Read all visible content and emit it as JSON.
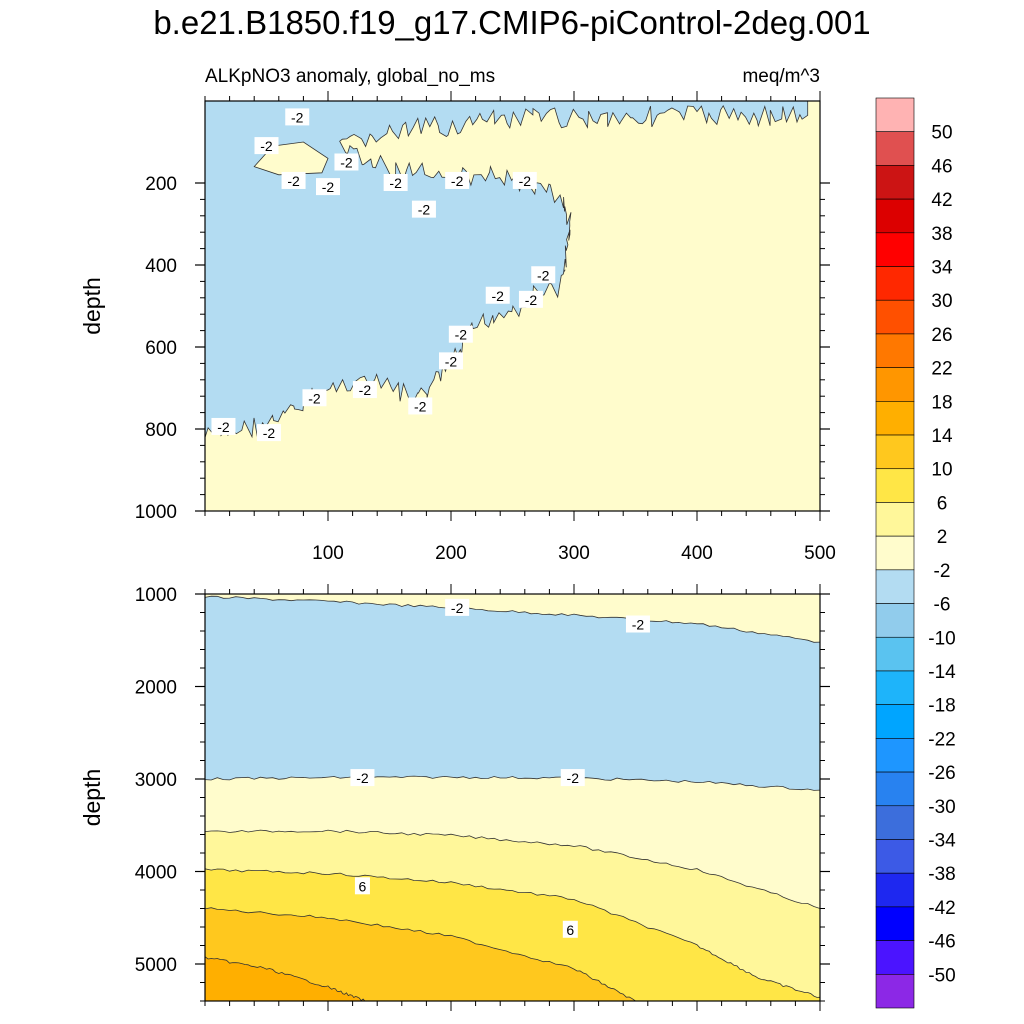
{
  "figure": {
    "title": "b.e21.B1850.f19_g17.CMIP6-piControl-2deg.001",
    "left_subtitle": "ALKpNO3 anomaly, global_no_ms",
    "right_subtitle": "meq/m^3"
  },
  "chart_data": [
    {
      "type": "contour",
      "panel": "upper",
      "xlabel": "",
      "ylabel": "depth",
      "xlim": [
        0,
        500
      ],
      "ylim": [
        1000,
        0
      ],
      "xticks": [
        100,
        200,
        300,
        400,
        500
      ],
      "yticks": [
        200,
        400,
        600,
        800,
        1000
      ],
      "regions": [
        {
          "level_range": "-6 to -2",
          "color": "#b3dcf2",
          "description": "negative anomaly tongue in upper ocean, deepest near x=0 (~800 m), extending to x~300"
        },
        {
          "level_range": "-2 to 2",
          "color": "#fffccc",
          "description": "near-zero anomaly elsewhere"
        }
      ],
      "boundary": [
        [
          0,
          820
        ],
        [
          30,
          800
        ],
        [
          60,
          780
        ],
        [
          90,
          720
        ],
        [
          120,
          680
        ],
        [
          150,
          700
        ],
        [
          175,
          730
        ],
        [
          195,
          660
        ],
        [
          210,
          600
        ],
        [
          220,
          550
        ],
        [
          235,
          520
        ],
        [
          255,
          500
        ],
        [
          270,
          470
        ],
        [
          290,
          450
        ],
        [
          298,
          300
        ],
        [
          290,
          240
        ],
        [
          265,
          200
        ],
        [
          230,
          180
        ],
        [
          200,
          190
        ],
        [
          160,
          170
        ],
        [
          130,
          150
        ],
        [
          110,
          120
        ],
        [
          130,
          90
        ],
        [
          170,
          70
        ],
        [
          230,
          50
        ],
        [
          300,
          40
        ],
        [
          400,
          35
        ],
        [
          490,
          35
        ],
        [
          490,
          0
        ],
        [
          0,
          0
        ]
      ],
      "inner_patch": [
        [
          40,
          160
        ],
        [
          55,
          110
        ],
        [
          80,
          100
        ],
        [
          100,
          140
        ],
        [
          95,
          175
        ],
        [
          60,
          180
        ]
      ],
      "contour_labels": [
        {
          "text": "-2",
          "x": 50,
          "y": 110
        },
        {
          "text": "-2",
          "x": 75,
          "y": 40
        },
        {
          "text": "-2",
          "x": 115,
          "y": 150
        },
        {
          "text": "-2",
          "x": 72,
          "y": 195
        },
        {
          "text": "-2",
          "x": 100,
          "y": 210
        },
        {
          "text": "-2",
          "x": 155,
          "y": 200
        },
        {
          "text": "-2",
          "x": 205,
          "y": 195
        },
        {
          "text": "-2",
          "x": 260,
          "y": 195
        },
        {
          "text": "-2",
          "x": 178,
          "y": 265
        },
        {
          "text": "-2",
          "x": 275,
          "y": 425
        },
        {
          "text": "-2",
          "x": 238,
          "y": 475
        },
        {
          "text": "-2",
          "x": 265,
          "y": 485
        },
        {
          "text": "-2",
          "x": 208,
          "y": 570
        },
        {
          "text": "-2",
          "x": 200,
          "y": 635
        },
        {
          "text": "-2",
          "x": 130,
          "y": 705
        },
        {
          "text": "-2",
          "x": 89,
          "y": 725
        },
        {
          "text": "-2",
          "x": 175,
          "y": 745
        },
        {
          "text": "-2",
          "x": 15,
          "y": 795
        },
        {
          "text": "-2",
          "x": 52,
          "y": 810
        }
      ]
    },
    {
      "type": "contour",
      "panel": "lower",
      "xlabel": "",
      "ylabel": "depth",
      "xlim": [
        0,
        500
      ],
      "ylim": [
        5400,
        1000
      ],
      "yticks": [
        1000,
        2000,
        3000,
        4000,
        5000
      ],
      "contours": [
        {
          "level": -2,
          "points": [
            [
              0,
              1030
            ],
            [
              100,
              1080
            ],
            [
              200,
              1150
            ],
            [
              300,
              1230
            ],
            [
              400,
              1320
            ],
            [
              500,
              1520
            ]
          ]
        },
        {
          "level": -2,
          "points": [
            [
              0,
              3000
            ],
            [
              100,
              2985
            ],
            [
              200,
              2980
            ],
            [
              300,
              2990
            ],
            [
              400,
              3030
            ],
            [
              500,
              3120
            ]
          ]
        },
        {
          "level": 2,
          "points": [
            [
              0,
              3570
            ],
            [
              100,
              3560
            ],
            [
              200,
              3610
            ],
            [
              300,
              3720
            ],
            [
              400,
              3980
            ],
            [
              500,
              4400
            ]
          ]
        },
        {
          "level": 6,
          "points": [
            [
              0,
              3980
            ],
            [
              100,
              4020
            ],
            [
              200,
              4120
            ],
            [
              300,
              4300
            ],
            [
              400,
              4800
            ],
            [
              450,
              5150
            ],
            [
              500,
              5360
            ]
          ]
        },
        {
          "level": 10,
          "points": [
            [
              0,
              4400
            ],
            [
              100,
              4500
            ],
            [
              200,
              4700
            ],
            [
              300,
              5050
            ],
            [
              350,
              5400
            ]
          ]
        },
        {
          "level": 14,
          "points": [
            [
              0,
              4930
            ],
            [
              50,
              5050
            ],
            [
              100,
              5250
            ],
            [
              130,
              5400
            ]
          ]
        }
      ],
      "fill_colors": [
        "#b3dcf2",
        "#fffccc",
        "#fff79a",
        "#ffe646",
        "#ffc81e",
        "#ffaf00"
      ],
      "contour_labels": [
        {
          "text": "-2",
          "x": 205,
          "y": 1150
        },
        {
          "text": "-2",
          "x": 352,
          "y": 1330
        },
        {
          "text": "-2",
          "x": 128,
          "y": 2990
        },
        {
          "text": "-2",
          "x": 299,
          "y": 2990
        },
        {
          "text": "6",
          "x": 128,
          "y": 4160
        },
        {
          "text": "6",
          "x": 297,
          "y": 4630
        }
      ]
    }
  ],
  "colorbar": {
    "labels": [
      "50",
      "46",
      "42",
      "38",
      "34",
      "30",
      "26",
      "22",
      "18",
      "14",
      "10",
      "6",
      "2",
      "-2",
      "-6",
      "-10",
      "-14",
      "-18",
      "-22",
      "-26",
      "-30",
      "-34",
      "-38",
      "-42",
      "-46",
      "-50"
    ],
    "colors": [
      "#ffb3b3",
      "#e05050",
      "#cc1414",
      "#dc0000",
      "#ff0000",
      "#ff2800",
      "#ff5000",
      "#ff7800",
      "#ff9600",
      "#ffaf00",
      "#ffc81e",
      "#ffe646",
      "#fff79a",
      "#fffccc",
      "#b3dcf2",
      "#91ccec",
      "#5ac3f0",
      "#1eb4fa",
      "#00a5ff",
      "#1e96ff",
      "#2882f0",
      "#3c6edc",
      "#3c5ae6",
      "#1e28f0",
      "#0000ff",
      "#4b14ff",
      "#8c28e6"
    ]
  }
}
